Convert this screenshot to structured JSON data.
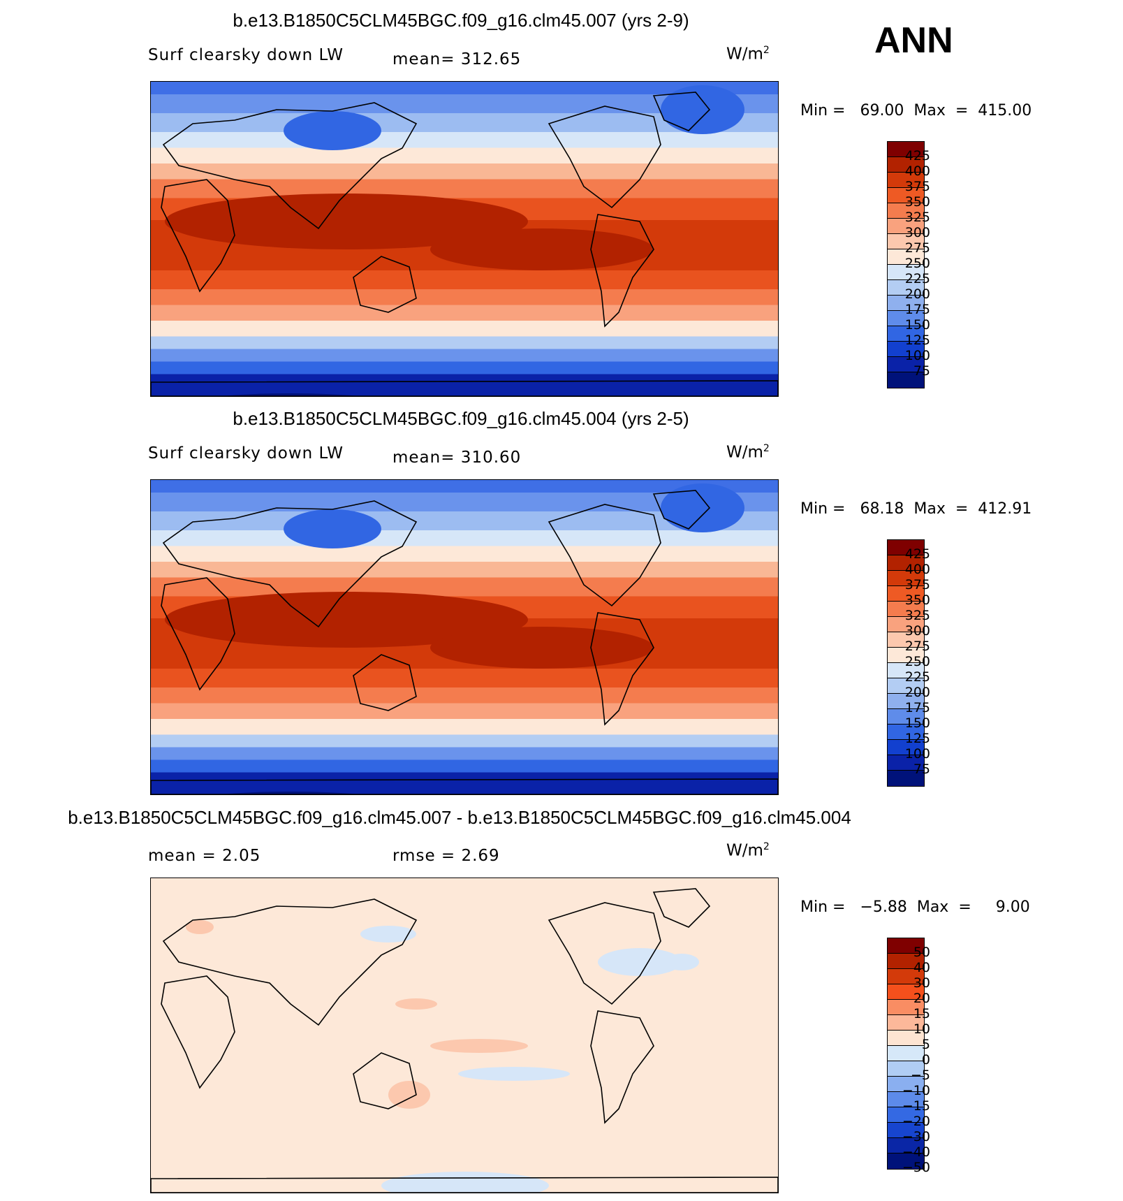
{
  "season": "ANN",
  "panels": [
    {
      "title": "b.e13.B1850C5CLM45BGC.f09_g16.clm45.007 (yrs 2-9)",
      "variable": "Surf clearsky down LW",
      "stat1": "mean=  312.65",
      "stat2": "",
      "units": "W/m",
      "units_sup": "2",
      "minmax": "Min =   69.00  Max  =  415.00",
      "colorbar_labels": [
        "425",
        "400",
        "375",
        "350",
        "325",
        "300",
        "275",
        "250",
        "225",
        "200",
        "175",
        "150",
        "125",
        "100",
        "75"
      ]
    },
    {
      "title": "b.e13.B1850C5CLM45BGC.f09_g16.clm45.004 (yrs 2-5)",
      "variable": "Surf clearsky down LW",
      "stat1": "mean=  310.60",
      "stat2": "",
      "units": "W/m",
      "units_sup": "2",
      "minmax": "Min =   68.18  Max  =  412.91",
      "colorbar_labels": [
        "425",
        "400",
        "375",
        "350",
        "325",
        "300",
        "275",
        "250",
        "225",
        "200",
        "175",
        "150",
        "125",
        "100",
        "75"
      ]
    },
    {
      "title": "b.e13.B1850C5CLM45BGC.f09_g16.clm45.007 - b.e13.B1850C5CLM45BGC.f09_g16.clm45.004",
      "variable": "",
      "stat1": "mean =     2.05",
      "stat2": "rmse =     2.69",
      "units": "W/m",
      "units_sup": "2",
      "minmax": "Min =   −5.88  Max  =     9.00",
      "colorbar_labels": [
        "50",
        "40",
        "30",
        "20",
        "15",
        "10",
        "5",
        "0",
        "−5",
        "−10",
        "−15",
        "−20",
        "−30",
        "−40",
        "−50"
      ]
    }
  ],
  "colors": {
    "palette": [
      "#7f0000",
      "#b22200",
      "#d33a0a",
      "#ee5a24",
      "#f47c4e",
      "#f9a27e",
      "#fcc8ae",
      "#fde8d8",
      "#d6e6f8",
      "#b3cdf3",
      "#8fb0ee",
      "#5f8cea",
      "#3166e3",
      "#1240cf",
      "#0a22a8",
      "#00127a"
    ],
    "diff_palette": [
      "#7f0000",
      "#b22200",
      "#d33a0a",
      "#f4501c",
      "#f98d63",
      "#fcb89a",
      "#fde4d2",
      "#d6e8f9",
      "#b0cdf4",
      "#8aaff0",
      "#5d8bea",
      "#3469e3",
      "#1745cf",
      "#0a26a6",
      "#00127a"
    ]
  }
}
